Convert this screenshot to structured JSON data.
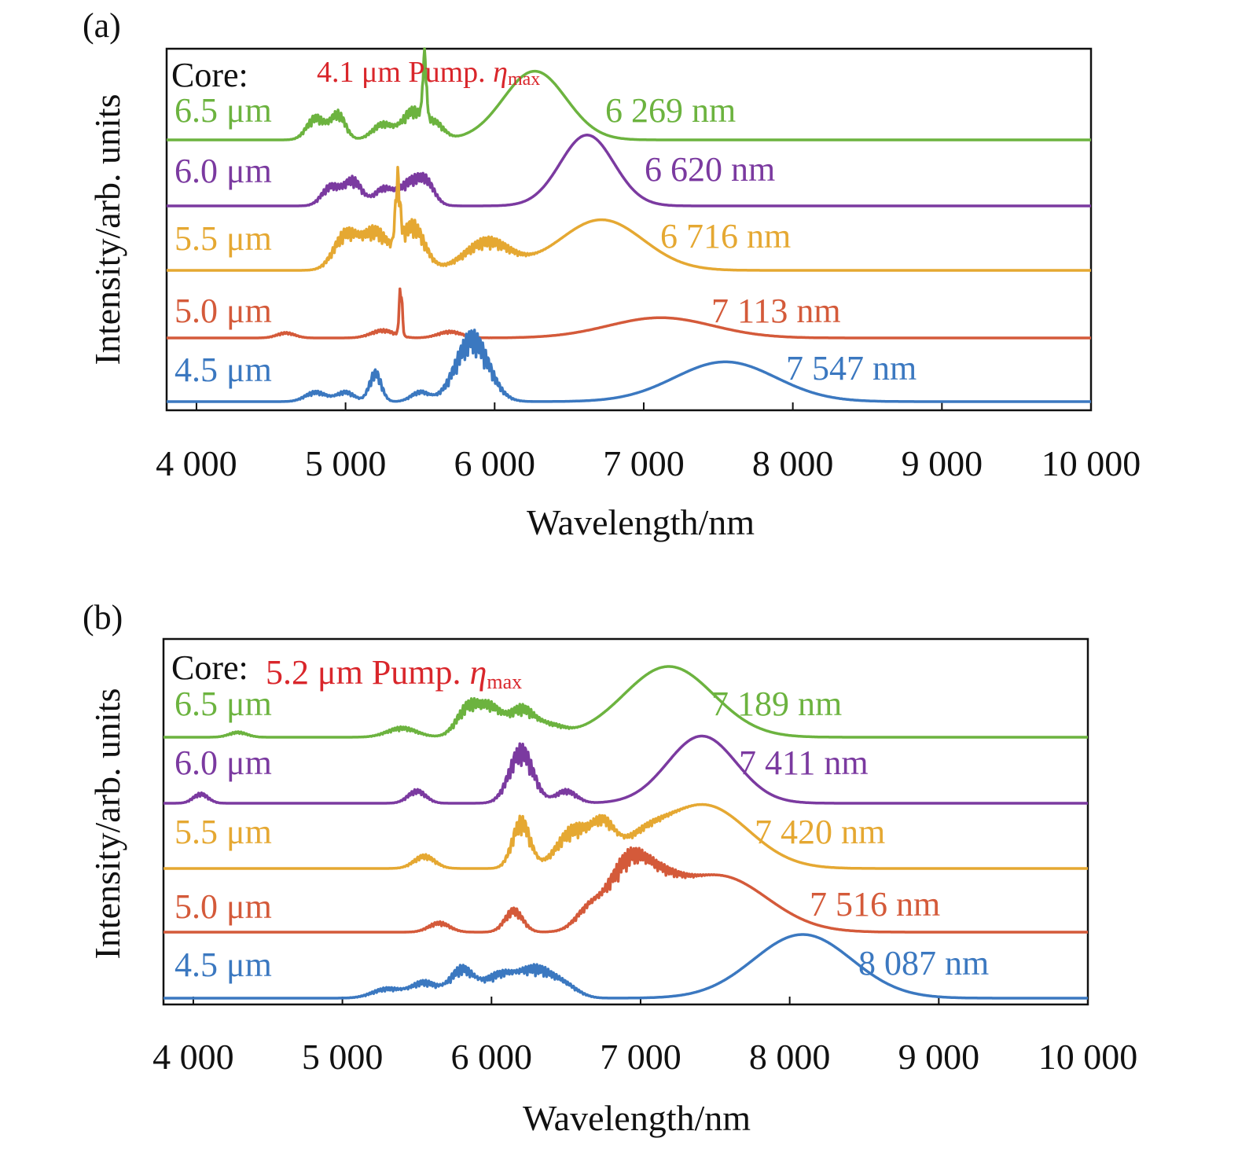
{
  "chart_data": [
    {
      "panel_label": "(a)",
      "type": "line",
      "title": "",
      "xlabel": "Wavelength/nm",
      "ylabel": "Intensity/arb. units",
      "xlim": [
        3800,
        10000
      ],
      "xticks": [
        4000,
        5000,
        6000,
        7000,
        8000,
        9000,
        10000
      ],
      "xtick_labels": [
        "4 000",
        "5 000",
        "6 000",
        "7 000",
        "8 000",
        "9 000",
        "10 000"
      ],
      "grid": false,
      "legend_title": "Core:",
      "annotation": {
        "prefix": "4.1 μm Pump. ",
        "symbol": "η",
        "subscript": "max",
        "color": "#d9262b"
      },
      "series": [
        {
          "name": "6.5 μm",
          "color": "#6cb33f",
          "offset": 5,
          "peak_label": "6 269 nm",
          "main_peak": {
            "x": 6269,
            "height": 0.95,
            "width": 210
          },
          "features": [
            [
              4800,
              0.35,
              60
            ],
            [
              4950,
              0.4,
              50
            ],
            [
              5250,
              0.25,
              70
            ],
            [
              5450,
              0.45,
              70
            ],
            [
              5530,
              1.0,
              12
            ],
            [
              5600,
              0.25,
              60
            ]
          ]
        },
        {
          "name": "6.0 μm",
          "color": "#7b3aa0",
          "offset": 4,
          "peak_label": "6 620 nm",
          "main_peak": {
            "x": 6620,
            "height": 0.98,
            "width": 180
          },
          "features": [
            [
              4900,
              0.3,
              60
            ],
            [
              5050,
              0.4,
              60
            ],
            [
              5250,
              0.25,
              60
            ],
            [
              5450,
              0.4,
              90
            ],
            [
              5550,
              0.2,
              50
            ]
          ]
        },
        {
          "name": "5.5 μm",
          "color": "#e5a832",
          "offset": 3,
          "peak_label": "6 716 nm",
          "main_peak": {
            "x": 6716,
            "height": 0.7,
            "width": 280
          },
          "features": [
            [
              5000,
              0.55,
              80
            ],
            [
              5200,
              0.6,
              90
            ],
            [
              5350,
              1.0,
              15
            ],
            [
              5450,
              0.7,
              80
            ],
            [
              5950,
              0.45,
              150
            ]
          ]
        },
        {
          "name": "5.0 μm",
          "color": "#d45a3a",
          "offset": 2,
          "peak_label": "7 113 nm",
          "main_peak": {
            "x": 7113,
            "height": 0.28,
            "width": 350
          },
          "features": [
            [
              4600,
              0.08,
              60
            ],
            [
              5250,
              0.12,
              80
            ],
            [
              5370,
              0.75,
              10
            ],
            [
              5700,
              0.1,
              80
            ]
          ]
        },
        {
          "name": "4.5 μm",
          "color": "#3b78c0",
          "offset": 1,
          "peak_label": "7 547 nm",
          "main_peak": {
            "x": 7547,
            "height": 0.55,
            "width": 340
          },
          "features": [
            [
              4800,
              0.15,
              70
            ],
            [
              5000,
              0.15,
              60
            ],
            [
              5200,
              0.45,
              40
            ],
            [
              5500,
              0.15,
              60
            ],
            [
              5850,
              1.0,
              110
            ]
          ]
        }
      ]
    },
    {
      "panel_label": "(b)",
      "type": "line",
      "title": "",
      "xlabel": "Wavelength/nm",
      "ylabel": "Intensity/arb. units",
      "xlim": [
        3800,
        10000
      ],
      "xticks": [
        4000,
        5000,
        6000,
        7000,
        8000,
        9000,
        10000
      ],
      "xtick_labels": [
        "4 000",
        "5 000",
        "6 000",
        "7 000",
        "8 000",
        "9 000",
        "10 000"
      ],
      "grid": false,
      "legend_title": "Core:",
      "annotation": {
        "prefix": "5.2 μm Pump. ",
        "symbol": "η",
        "subscript": "max",
        "color": "#d9262b"
      },
      "series": [
        {
          "name": "6.5 μm",
          "color": "#6cb33f",
          "offset": 5,
          "peak_label": "7 189 nm",
          "main_peak": {
            "x": 7189,
            "height": 1.0,
            "width": 300
          },
          "features": [
            [
              4300,
              0.08,
              60
            ],
            [
              5400,
              0.15,
              100
            ],
            [
              5850,
              0.5,
              80
            ],
            [
              6000,
              0.4,
              70
            ],
            [
              6200,
              0.45,
              90
            ],
            [
              6400,
              0.15,
              90
            ]
          ]
        },
        {
          "name": "6.0 μm",
          "color": "#7b3aa0",
          "offset": 4,
          "peak_label": "7 411 nm",
          "main_peak": {
            "x": 7411,
            "height": 0.95,
            "width": 230
          },
          "features": [
            [
              4050,
              0.15,
              50
            ],
            [
              5500,
              0.2,
              60
            ],
            [
              6200,
              0.85,
              80
            ],
            [
              6500,
              0.2,
              70
            ]
          ]
        },
        {
          "name": "5.5 μm",
          "color": "#e5a832",
          "offset": 3,
          "peak_label": "7 420 nm",
          "main_peak": {
            "x": 7420,
            "height": 0.9,
            "width": 300
          },
          "features": [
            [
              5550,
              0.2,
              70
            ],
            [
              6200,
              0.75,
              60
            ],
            [
              6550,
              0.6,
              110
            ],
            [
              6750,
              0.55,
              80
            ],
            [
              7000,
              0.25,
              150
            ]
          ]
        },
        {
          "name": "5.0 μm",
          "color": "#d45a3a",
          "offset": 2,
          "peak_label": "7 516 nm",
          "main_peak": {
            "x": 7516,
            "height": 0.8,
            "width": 330
          },
          "features": [
            [
              5650,
              0.15,
              70
            ],
            [
              6150,
              0.35,
              60
            ],
            [
              6650,
              0.3,
              90
            ],
            [
              6900,
              0.85,
              130
            ],
            [
              7100,
              0.45,
              150
            ]
          ]
        },
        {
          "name": "4.5 μm",
          "color": "#3b78c0",
          "offset": 1,
          "peak_label": "8 087 nm",
          "main_peak": {
            "x": 8087,
            "height": 0.9,
            "width": 330
          },
          "features": [
            [
              5300,
              0.15,
              100
            ],
            [
              5550,
              0.25,
              90
            ],
            [
              5800,
              0.45,
              80
            ],
            [
              6050,
              0.35,
              110
            ],
            [
              6300,
              0.45,
              120
            ],
            [
              6500,
              0.15,
              90
            ]
          ]
        }
      ]
    }
  ]
}
